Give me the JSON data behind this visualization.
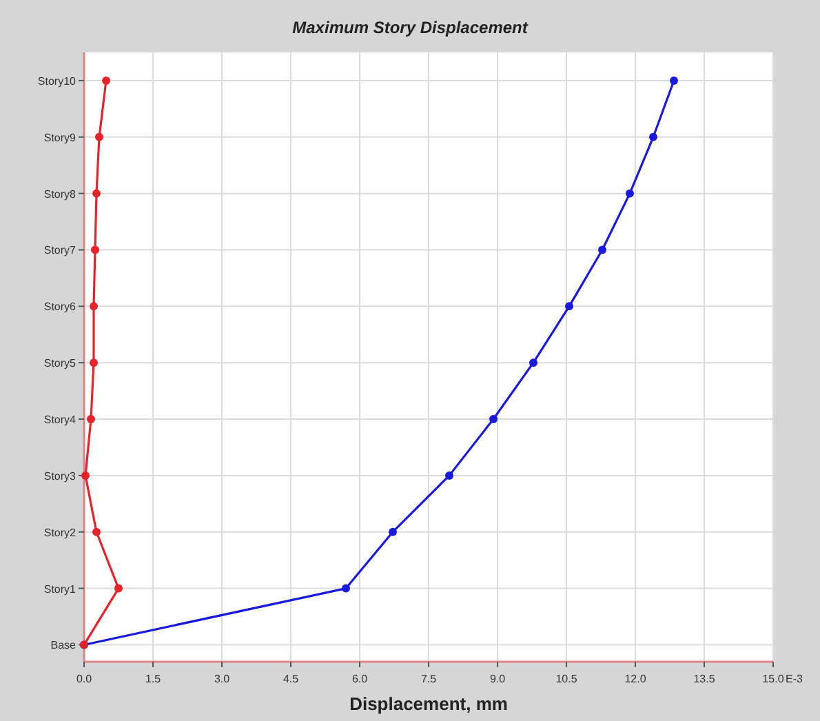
{
  "chart_data": {
    "type": "line",
    "title": "Maximum Story Displacement",
    "xlabel": "Displacement, mm",
    "orientation": "horizontal",
    "categories": [
      "Story10",
      "Story9",
      "Story8",
      "Story7",
      "Story6",
      "Story5",
      "Story4",
      "Story3",
      "Story2",
      "Story1",
      "Base"
    ],
    "series": [
      {
        "color": "#1a1adc",
        "values": [
          12.84,
          12.39,
          11.88,
          11.28,
          10.56,
          9.78,
          8.91,
          7.95,
          6.72,
          5.7,
          0
        ]
      },
      {
        "color": "#e5232b",
        "values": [
          0.48,
          0.33,
          0.27,
          0.24,
          0.21,
          0.21,
          0.15,
          0.03,
          0.27,
          0.75,
          0
        ]
      }
    ],
    "xlim": [
      0,
      15
    ],
    "xticks": [
      {
        "value": 0,
        "label": "0.0"
      },
      {
        "value": 1.5,
        "label": "1.5"
      },
      {
        "value": 3,
        "label": "3.0"
      },
      {
        "value": 4.5,
        "label": "4.5"
      },
      {
        "value": 6,
        "label": "6.0"
      },
      {
        "value": 7.5,
        "label": "7.5"
      },
      {
        "value": 9,
        "label": "9.0"
      },
      {
        "value": 10.5,
        "label": "10.5"
      },
      {
        "value": 12,
        "label": "12.0"
      },
      {
        "value": 13.5,
        "label": "13.5"
      },
      {
        "value": 15,
        "label": "15.0"
      }
    ],
    "annotations": [
      "E-3"
    ],
    "grid": true,
    "marker": "circle",
    "line_style": "solid"
  }
}
